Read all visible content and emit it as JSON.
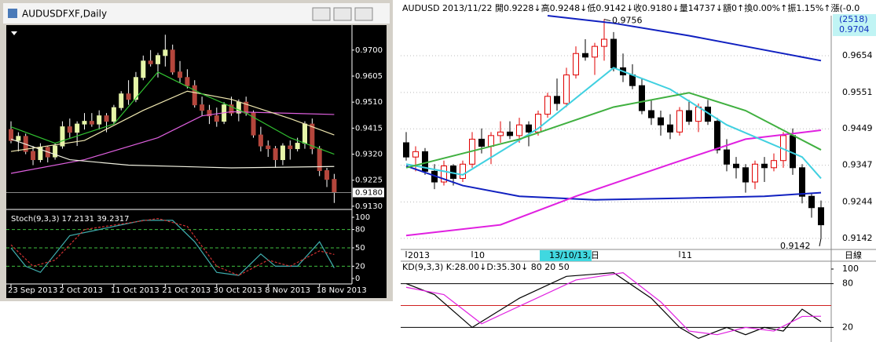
{
  "candles": {
    "ohlc": [
      [
        0.941,
        0.944,
        0.936,
        0.937
      ],
      [
        0.937,
        0.94,
        0.933,
        0.9385
      ],
      [
        0.9385,
        0.9395,
        0.932,
        0.933
      ],
      [
        0.933,
        0.935,
        0.928,
        0.93
      ],
      [
        0.93,
        0.936,
        0.929,
        0.9345
      ],
      [
        0.9345,
        0.935,
        0.929,
        0.931
      ],
      [
        0.931,
        0.936,
        0.93,
        0.935
      ],
      [
        0.935,
        0.944,
        0.934,
        0.942
      ],
      [
        0.942,
        0.945,
        0.938,
        0.94
      ],
      [
        0.94,
        0.944,
        0.935,
        0.943
      ],
      [
        0.943,
        0.947,
        0.941,
        0.944
      ],
      [
        0.944,
        0.947,
        0.942,
        0.943
      ],
      [
        0.943,
        0.948,
        0.941,
        0.946
      ],
      [
        0.946,
        0.947,
        0.94,
        0.944
      ],
      [
        0.944,
        0.95,
        0.943,
        0.949
      ],
      [
        0.949,
        0.955,
        0.948,
        0.954
      ],
      [
        0.954,
        0.959,
        0.95,
        0.952
      ],
      [
        0.952,
        0.962,
        0.951,
        0.96
      ],
      [
        0.96,
        0.968,
        0.959,
        0.966
      ],
      [
        0.966,
        0.97,
        0.964,
        0.965
      ],
      [
        0.965,
        0.969,
        0.96,
        0.968
      ],
      [
        0.968,
        0.9756,
        0.964,
        0.97
      ],
      [
        0.97,
        0.972,
        0.961,
        0.962
      ],
      [
        0.962,
        0.966,
        0.958,
        0.96
      ],
      [
        0.96,
        0.963,
        0.956,
        0.957
      ],
      [
        0.957,
        0.959,
        0.949,
        0.95
      ],
      [
        0.95,
        0.953,
        0.946,
        0.948
      ],
      [
        0.948,
        0.95,
        0.943,
        0.946
      ],
      [
        0.946,
        0.949,
        0.942,
        0.944
      ],
      [
        0.944,
        0.951,
        0.943,
        0.95
      ],
      [
        0.95,
        0.953,
        0.946,
        0.947
      ],
      [
        0.947,
        0.952,
        0.944,
        0.951
      ],
      [
        0.951,
        0.953,
        0.946,
        0.947
      ],
      [
        0.947,
        0.948,
        0.938,
        0.939
      ],
      [
        0.939,
        0.942,
        0.933,
        0.935
      ],
      [
        0.935,
        0.937,
        0.931,
        0.934
      ],
      [
        0.934,
        0.935,
        0.927,
        0.93
      ],
      [
        0.93,
        0.936,
        0.928,
        0.935
      ],
      [
        0.935,
        0.937,
        0.93,
        0.934
      ],
      [
        0.934,
        0.938,
        0.933,
        0.936
      ],
      [
        0.936,
        0.944,
        0.934,
        0.943
      ],
      [
        0.943,
        0.945,
        0.932,
        0.934
      ],
      [
        0.934,
        0.935,
        0.924,
        0.926
      ],
      [
        0.926,
        0.927,
        0.92,
        0.9228
      ],
      [
        0.9228,
        0.9248,
        0.9142,
        0.918
      ]
    ]
  },
  "chart_data": [
    {
      "type": "candlestick",
      "title": "AUDUSDFXF,Daily",
      "style": "filled",
      "background": "#000000",
      "grid": false,
      "bull_color": "#e6f5a8",
      "bear_color": "#b4463c",
      "ylim": [
        0.9124,
        0.9774
      ],
      "yticks": [
        {
          "value": 0.97,
          "label": "0.9700"
        },
        0.9605,
        {
          "value": 0.951,
          "label": "0.9510"
        },
        0.9415,
        {
          "value": 0.932,
          "label": "0.9320"
        },
        0.9225,
        {
          "value": 0.913,
          "label": "0.9130"
        }
      ],
      "last_price": {
        "value": 0.918,
        "label": "0.9180"
      },
      "xticks": [
        {
          "value": 0,
          "label": "23 Sep 2013"
        },
        {
          "value": 7,
          "label": "2 Oct 2013"
        },
        {
          "value": 14,
          "label": "11 Oct 2013"
        },
        {
          "value": 21,
          "label": "21 Oct 2013"
        },
        {
          "value": 28,
          "label": "30 Oct 2013"
        },
        {
          "value": 35,
          "label": "8 Nov 2013"
        },
        {
          "value": 42,
          "label": "18 Nov 2013"
        }
      ],
      "lines": [
        {
          "color": "#e060e0",
          "x": [
            0,
            10,
            20,
            26,
            30,
            44
          ],
          "values": [
            0.925,
            0.93,
            0.938,
            0.946,
            0.9475,
            0.9465
          ]
        },
        {
          "color": "#f0f0e0",
          "x": [
            0,
            8,
            16,
            30,
            44
          ],
          "values": [
            0.9375,
            0.93,
            0.928,
            0.927,
            0.9275
          ]
        },
        {
          "color": "#f0e8b0",
          "x": [
            0,
            10,
            18,
            24,
            30,
            38,
            44
          ],
          "values": [
            0.933,
            0.937,
            0.948,
            0.955,
            0.952,
            0.945,
            0.939
          ]
        },
        {
          "color": "#30c030",
          "x": [
            0,
            6,
            14,
            20,
            26,
            32,
            38,
            44
          ],
          "values": [
            0.942,
            0.936,
            0.943,
            0.962,
            0.954,
            0.947,
            0.938,
            0.932
          ]
        }
      ],
      "oscillator": {
        "label": "Stoch(9,3,3) 17.2131 39.2317",
        "ylim": [
          0,
          100
        ],
        "yticks": [
          100,
          80,
          50,
          20,
          0
        ],
        "levels": [
          80,
          50,
          20
        ],
        "level_color": "#40c040",
        "series": [
          {
            "color": "#40b0b0",
            "dash": false,
            "x": [
              0,
              2,
              4,
              8,
              14,
              18,
              22,
              25,
              28,
              31,
              34,
              36,
              39,
              42,
              44
            ],
            "values": [
              50,
              20,
              10,
              70,
              85,
              95,
              95,
              60,
              10,
              5,
              40,
              20,
              20,
              60,
              17.2131
            ]
          },
          {
            "color": "#d03030",
            "dash": true,
            "x": [
              0,
              3,
              6,
              10,
              20,
              24,
              28,
              31,
              35,
              38,
              42,
              44
            ],
            "values": [
              55,
              20,
              30,
              80,
              98,
              85,
              20,
              5,
              30,
              20,
              45,
              39.2317
            ]
          }
        ]
      }
    },
    {
      "type": "candlestick",
      "title": "AUDUSD 2013/11/22 開0.9228↓高0.9248↓低0.9142↓收0.9180↓量14737↓額0↑換0.00%↑振1.15%↑漲(-0.0",
      "style": "hollow",
      "background": "#ffffff",
      "grid": true,
      "bull_color": "#e00000",
      "bear_color": "#000000",
      "corner_labels": [
        "(2518)",
        "0.9704"
      ],
      "ylim": [
        0.9111,
        0.9766
      ],
      "yticks": [
        0.9654,
        0.9551,
        0.9449,
        0.9347,
        0.9244,
        0.9142
      ],
      "xticks": [
        {
          "value": 0,
          "label": "2013"
        },
        {
          "value": 7,
          "label": "10"
        },
        {
          "value": 15,
          "label": "13/10/13,日",
          "highlight": true
        },
        {
          "value": 29,
          "label": "11"
        }
      ],
      "x_axis_label": "日線",
      "annotations": [
        {
          "x": 21,
          "value": 0.9756,
          "label": "0.9756"
        },
        {
          "x": 44,
          "value": 0.9142,
          "label": "0.9142"
        }
      ],
      "lines": [
        {
          "color": "#1020c0",
          "x": [
            15,
            22,
            30,
            38,
            44
          ],
          "values": [
            0.9766,
            0.9745,
            0.971,
            0.967,
            0.964
          ]
        },
        {
          "color": "#1020c0",
          "x": [
            0,
            6,
            12,
            20,
            30,
            38,
            44
          ],
          "values": [
            0.9345,
            0.929,
            0.926,
            0.925,
            0.9255,
            0.926,
            0.927
          ]
        },
        {
          "color": "#e020e0",
          "x": [
            0,
            10,
            18,
            28,
            36,
            44
          ],
          "values": [
            0.915,
            0.918,
            0.926,
            0.935,
            0.942,
            0.9445
          ]
        },
        {
          "color": "#40d0e0",
          "x": [
            0,
            6,
            14,
            22,
            28,
            34,
            42,
            44
          ],
          "values": [
            0.935,
            0.932,
            0.945,
            0.962,
            0.956,
            0.946,
            0.937,
            0.931
          ]
        },
        {
          "color": "#40b040",
          "x": [
            0,
            12,
            22,
            30,
            36,
            44
          ],
          "values": [
            0.934,
            0.942,
            0.951,
            0.955,
            0.95,
            0.939
          ]
        }
      ],
      "oscillator": {
        "label": "KD(9,3,3) K:28.00↓D:35.30↓ 80 20 50",
        "ylim": [
          0,
          100
        ],
        "yticks": [
          100,
          80,
          20
        ],
        "levels": [
          80,
          50,
          20
        ],
        "level_colors": [
          "#000000",
          "#d02020",
          "#000000"
        ],
        "series": [
          {
            "color": "#000000",
            "dash": false,
            "x": [
              0,
              3,
              7,
              12,
              17,
              22,
              26,
              29,
              31,
              34,
              36,
              38,
              40,
              42,
              44
            ],
            "values": [
              80,
              65,
              20,
              60,
              90,
              95,
              60,
              20,
              5,
              20,
              10,
              20,
              15,
              45,
              28
            ]
          },
          {
            "color": "#e020e0",
            "dash": false,
            "x": [
              0,
              4,
              8,
              13,
              18,
              23,
              27,
              30,
              33,
              36,
              39,
              42,
              44
            ],
            "values": [
              75,
              65,
              25,
              55,
              85,
              95,
              55,
              15,
              10,
              20,
              15,
              35,
              35.3
            ]
          }
        ]
      }
    }
  ]
}
